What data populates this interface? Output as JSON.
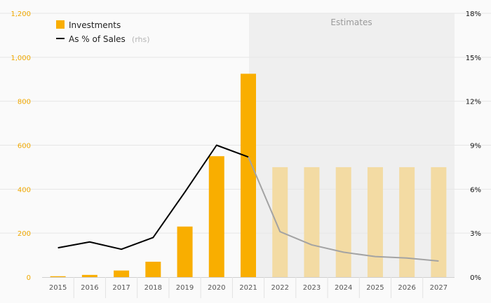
{
  "chart_data": {
    "type": "bar",
    "categories": [
      "2015",
      "2016",
      "2017",
      "2018",
      "2019",
      "2020",
      "2021",
      "2022",
      "2023",
      "2024",
      "2025",
      "2026",
      "2027"
    ],
    "series": [
      {
        "name": "Investments",
        "axis": "left",
        "values": [
          4,
          10,
          30,
          70,
          230,
          550,
          925,
          500,
          500,
          500,
          500,
          500,
          500
        ]
      },
      {
        "name": "As % of Sales",
        "axis": "right",
        "values": [
          2.0,
          2.4,
          1.9,
          2.7,
          5.8,
          9.0,
          8.2,
          3.1,
          2.2,
          1.7,
          1.4,
          1.3,
          1.1
        ]
      }
    ],
    "estimate_start": "2022",
    "legend": {
      "investments": "Investments",
      "pct_sales": "As % of Sales",
      "pct_suffix": "(rhs)"
    },
    "estimates_label": "Estimates",
    "ylim_left": [
      0,
      1200
    ],
    "ylim_right": [
      0,
      18
    ],
    "left_ticks": [
      "0",
      "200",
      "400",
      "600",
      "800",
      "1,000",
      "1,200"
    ],
    "right_ticks": [
      "0%",
      "3%",
      "6%",
      "9%",
      "12%",
      "15%",
      "18%"
    ],
    "colors": {
      "bar": "#f9ae00",
      "bar_estimate": "#f3dba3",
      "line": "#000000",
      "line_estimate": "#a3a3a3",
      "estimate_bg": "#efefef",
      "grid": "#e6e6e6"
    }
  }
}
